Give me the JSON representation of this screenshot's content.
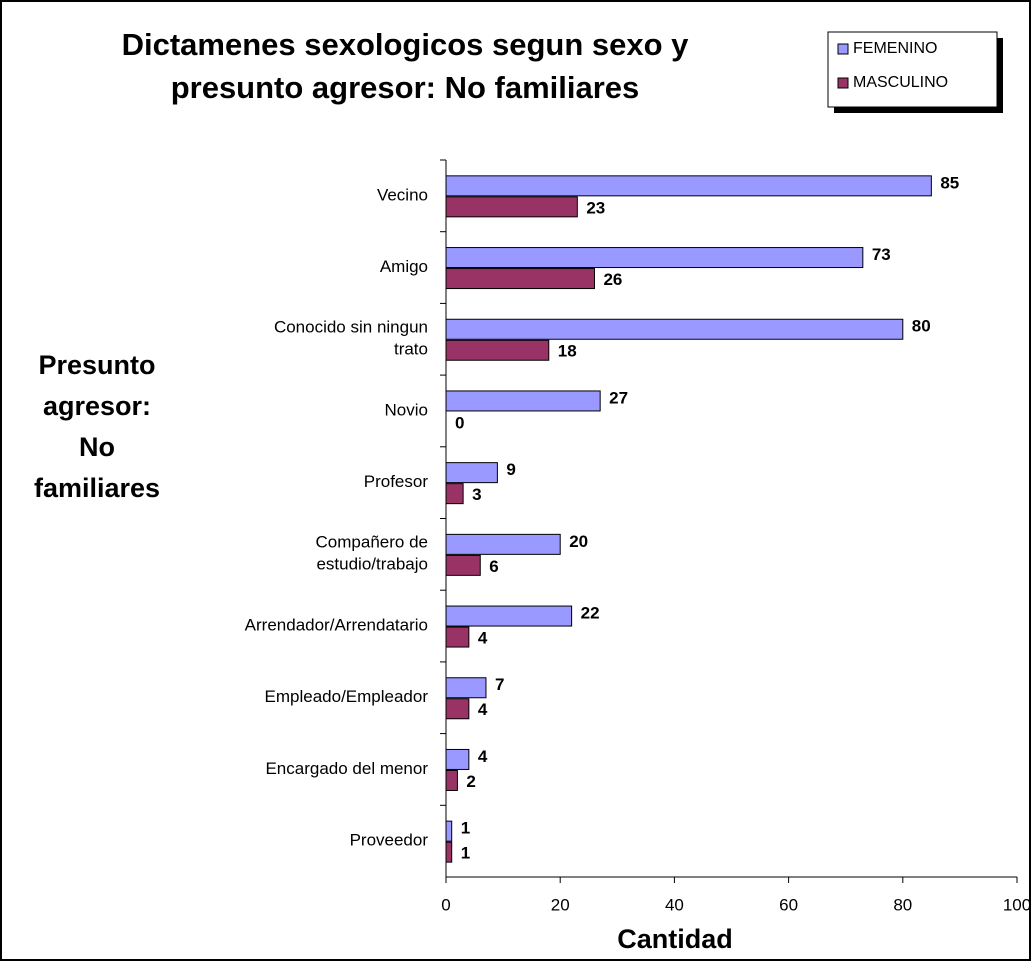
{
  "chart_data": {
    "type": "barh",
    "title": "Dictamenes sexologicos segun sexo y presunto agresor: No familiares",
    "ylabel": "Presunto agresor: No familiares",
    "xlabel": "Cantidad",
    "categories": [
      "Vecino",
      "Amigo",
      "Conocido sin ningun trato",
      "Novio",
      "Profesor",
      "Compañero de estudio/trabajo",
      "Arrendador/Arrendatario",
      "Empleado/Empleador",
      "Encargado del menor",
      "Proveedor"
    ],
    "series": [
      {
        "name": "FEMENINO",
        "color": "#9999ff",
        "values": [
          85,
          73,
          80,
          27,
          9,
          20,
          22,
          7,
          4,
          1
        ]
      },
      {
        "name": "MASCULINO",
        "color": "#993366",
        "values": [
          23,
          26,
          18,
          0,
          3,
          6,
          4,
          4,
          2,
          1
        ]
      }
    ],
    "xlim": [
      0,
      100
    ],
    "xticks": [
      0,
      20,
      40,
      60,
      80,
      100
    ]
  }
}
